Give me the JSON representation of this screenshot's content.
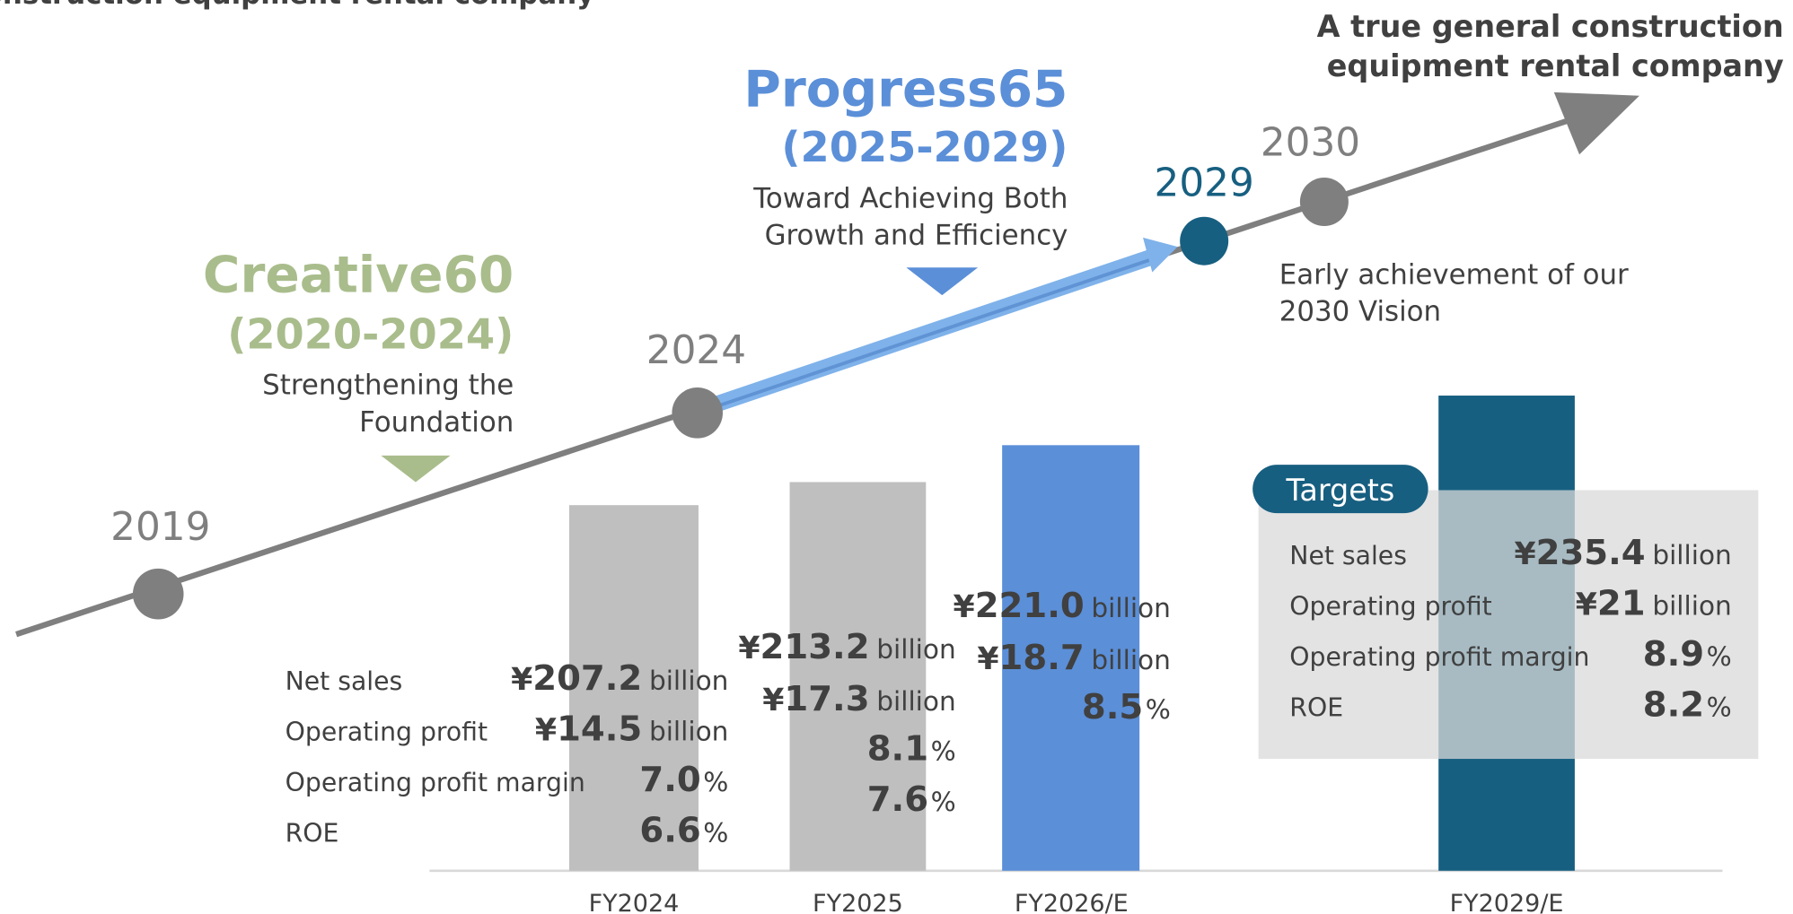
{
  "header_fragment": "construction equipment rental company",
  "vision": [
    "A true general construction",
    "equipment rental company"
  ],
  "years": [
    "2019",
    "2024",
    "2029",
    "2030"
  ],
  "plans": [
    {
      "name": "Creative60",
      "period": "(2020-2024)",
      "description": [
        "Strengthening the",
        "Foundation"
      ]
    },
    {
      "name": "Progress65",
      "period": "(2025-2029)",
      "description": [
        "Toward Achieving Both",
        "Growth and Efficiency"
      ]
    }
  ],
  "vision_note": [
    "Early achievement of our",
    "2030 Vision"
  ],
  "units": {
    "yen": "¥",
    "billion": "billion",
    "percent": "%"
  },
  "metrics": [
    "Net sales",
    "Operating profit",
    "Operating profit margin",
    "ROE"
  ],
  "periods": [
    {
      "label": "FY2024",
      "values": [
        "207.2",
        "14.5",
        "7.0",
        "6.6"
      ]
    },
    {
      "label": "FY2025",
      "values": [
        "213.2",
        "17.3",
        "8.1",
        "7.6"
      ]
    },
    {
      "label": "FY2026/E",
      "values": [
        "221.0",
        "18.7",
        "8.5"
      ]
    }
  ],
  "targets": {
    "title": "Targets",
    "label": "FY2029/E",
    "values": [
      "235.4",
      "21",
      "8.9",
      "8.2"
    ]
  }
}
